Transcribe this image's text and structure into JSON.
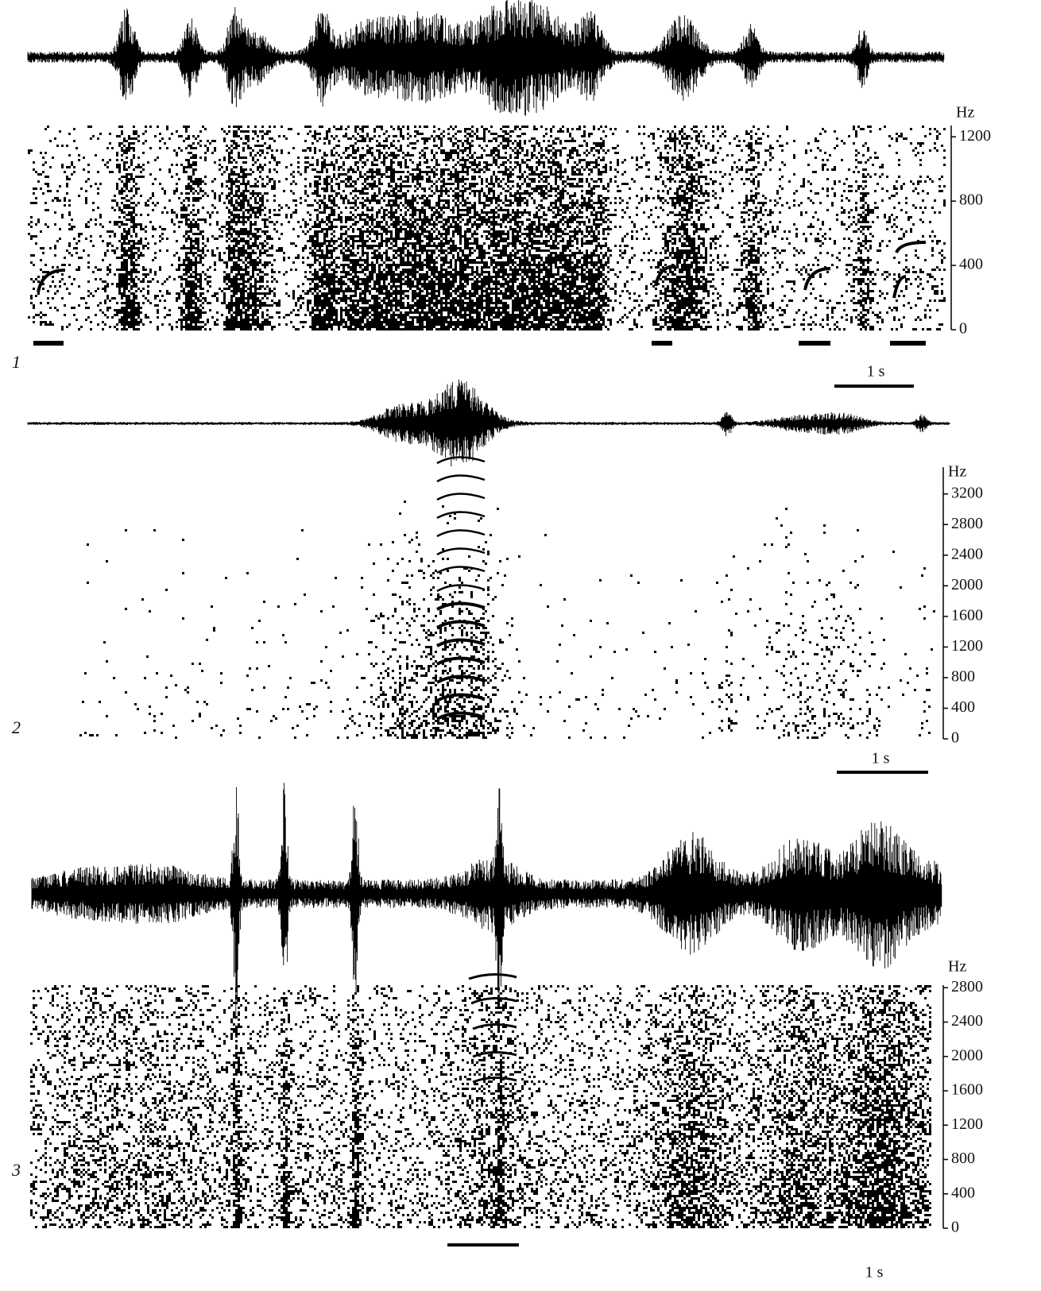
{
  "panels": [
    {
      "label": "1",
      "y_unit": "Hz",
      "ylim": [
        0,
        1270
      ],
      "yticks": [
        0,
        400,
        800,
        1200
      ],
      "scale_bar_label": "1 s"
    },
    {
      "label": "2",
      "y_unit": "Hz",
      "ylim": [
        0,
        3550
      ],
      "yticks": [
        0,
        400,
        800,
        1200,
        1600,
        2000,
        2400,
        2800,
        3200
      ],
      "scale_bar_label": "1 s"
    },
    {
      "label": "3",
      "y_unit": "Hz",
      "ylim": [
        0,
        2830
      ],
      "yticks": [
        0,
        400,
        800,
        1200,
        1600,
        2000,
        2400,
        2800
      ],
      "scale_bar_label": "1 s"
    }
  ]
}
